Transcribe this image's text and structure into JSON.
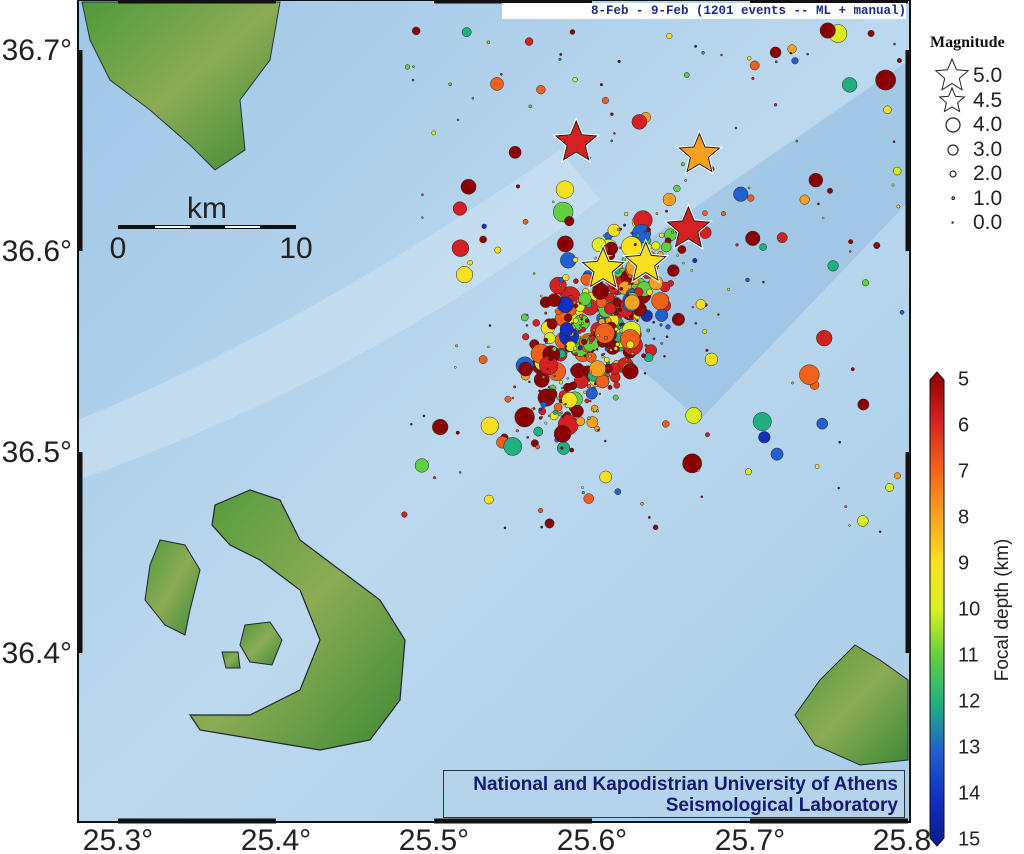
{
  "title": "8-Feb - 9-Feb (1201 events -- ML + manual)",
  "credit": {
    "line1": "National and Kapodistrian University of Athens",
    "line2": "Seismological Laboratory"
  },
  "axes": {
    "lon_ticks": [
      "25.3°",
      "25.4°",
      "25.5°",
      "25.6°",
      "25.7°",
      "25.8°"
    ],
    "lon_values": [
      25.3,
      25.4,
      25.5,
      25.6,
      25.7,
      25.8
    ],
    "lat_ticks": [
      "36.7°",
      "36.6°",
      "36.5°",
      "36.4°"
    ],
    "lat_values": [
      36.7,
      36.6,
      36.5,
      36.4
    ]
  },
  "scalebar": {
    "unit": "km",
    "start": "0",
    "end": "10"
  },
  "magnitude_legend": {
    "title": "Magnitude",
    "entries": [
      {
        "label": "5.0",
        "symbol": "star"
      },
      {
        "label": "4.5",
        "symbol": "star"
      },
      {
        "label": "4.0",
        "symbol": "circle"
      },
      {
        "label": "3.0",
        "symbol": "circle"
      },
      {
        "label": "2.0",
        "symbol": "circle"
      },
      {
        "label": "1.0",
        "symbol": "circle"
      },
      {
        "label": "0.0",
        "symbol": "circle"
      }
    ]
  },
  "colorbar": {
    "label": "Focal depth (km)",
    "min": 5,
    "max": 15,
    "ticks": [
      "5",
      "6",
      "7",
      "8",
      "9",
      "10",
      "11",
      "12",
      "13",
      "14",
      "15"
    ],
    "colors": [
      "#8b0000",
      "#d42020",
      "#f0601a",
      "#f8a020",
      "#f8e020",
      "#d8f020",
      "#60d040",
      "#20b080",
      "#2060d0",
      "#1030c0",
      "#0a1a8a"
    ]
  },
  "major_events": [
    {
      "lon": 25.59,
      "lat": 36.654,
      "mag": 4.8,
      "depth": 5.5
    },
    {
      "lon": 25.668,
      "lat": 36.648,
      "mag": 4.7,
      "depth": 7.5
    },
    {
      "lon": 25.661,
      "lat": 36.611,
      "mag": 5.0,
      "depth": 5.5
    },
    {
      "lon": 25.607,
      "lat": 36.591,
      "mag": 4.8,
      "depth": 8.5
    },
    {
      "lon": 25.634,
      "lat": 36.594,
      "mag": 4.7,
      "depth": 9.2
    }
  ],
  "event_count": 1201
}
